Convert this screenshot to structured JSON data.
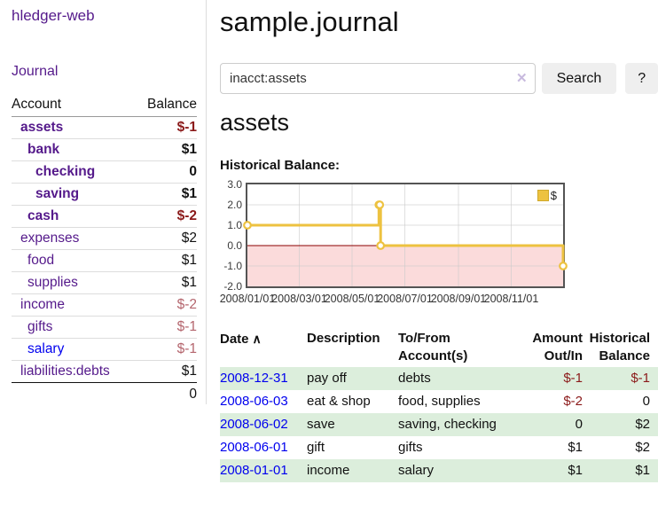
{
  "app": {
    "title": "hledger-web"
  },
  "colors": {
    "visited_link": "#551A8B",
    "link": "#0000EE",
    "negative_strong": "#8b1a1a",
    "negative_soft": "#b4656d",
    "row_stripe_green": "#dceedc",
    "button_bg": "#efefef"
  },
  "sidebar": {
    "journal_link": "Journal",
    "header": {
      "account": "Account",
      "balance": "Balance"
    },
    "accounts": [
      {
        "name": "assets",
        "balance": "$-1"
      },
      {
        "name": "bank",
        "balance": "$1"
      },
      {
        "name": "checking",
        "balance": "0"
      },
      {
        "name": "saving",
        "balance": "$1"
      },
      {
        "name": "cash",
        "balance": "$-2"
      },
      {
        "name": "expenses",
        "balance": "$2"
      },
      {
        "name": "food",
        "balance": "$1"
      },
      {
        "name": "supplies",
        "balance": "$1"
      },
      {
        "name": "income",
        "balance": "$-2"
      },
      {
        "name": "gifts",
        "balance": "$-1"
      },
      {
        "name": "salary",
        "balance": "$-1"
      },
      {
        "name": "liabilities:debts",
        "balance": "$1"
      }
    ],
    "total": "0"
  },
  "main": {
    "title": "sample.journal",
    "search": {
      "value": "inacct:assets",
      "clear_icon": "✕",
      "button_label": "Search",
      "help_label": "?"
    },
    "account_title": "assets",
    "chart_label": "Historical Balance:"
  },
  "register": {
    "headers": [
      "Date",
      "Description",
      "To/From Account(s)",
      "Amount Out/In",
      "Historical Balance"
    ],
    "sort_icon": "∧",
    "rows": [
      {
        "date": "2008-12-31",
        "description": "pay off",
        "accounts": "debts",
        "amount": "$-1",
        "balance": "$-1"
      },
      {
        "date": "2008-06-03",
        "description": "eat & shop",
        "accounts": "food, supplies",
        "amount": "$-2",
        "balance": "0"
      },
      {
        "date": "2008-06-02",
        "description": "save",
        "accounts": "saving, checking",
        "amount": "0",
        "balance": "$2"
      },
      {
        "date": "2008-06-01",
        "description": "gift",
        "accounts": "gifts",
        "amount": "$1",
        "balance": "$2"
      },
      {
        "date": "2008-01-01",
        "description": "income",
        "accounts": "salary",
        "amount": "$1",
        "balance": "$1"
      }
    ]
  },
  "chart_data": {
    "type": "line",
    "title": "Historical Balance",
    "series": [
      {
        "name": "$",
        "color": "#edc240",
        "step": true,
        "points": [
          [
            "2008-01-01",
            1
          ],
          [
            "2008-06-01",
            2
          ],
          [
            "2008-06-02",
            2
          ],
          [
            "2008-06-03",
            0
          ],
          [
            "2008-12-31",
            -1
          ]
        ]
      }
    ],
    "x_range": [
      "2008-01-01",
      "2008-12-31"
    ],
    "x_ticks": [
      "2008/01/01",
      "2008/03/01",
      "2008/05/01",
      "2008/07/01",
      "2008/09/01",
      "2008/11/01"
    ],
    "y_ticks": [
      3.0,
      2.0,
      1.0,
      0.0,
      -1.0,
      -2.0
    ],
    "ylim": [
      -2,
      3
    ],
    "grid": true,
    "legend_position": "top-right",
    "negative_region_color": "#fbdbdb",
    "zero_line_color": "#8b0000",
    "grid_color": "#c9c9c9"
  }
}
